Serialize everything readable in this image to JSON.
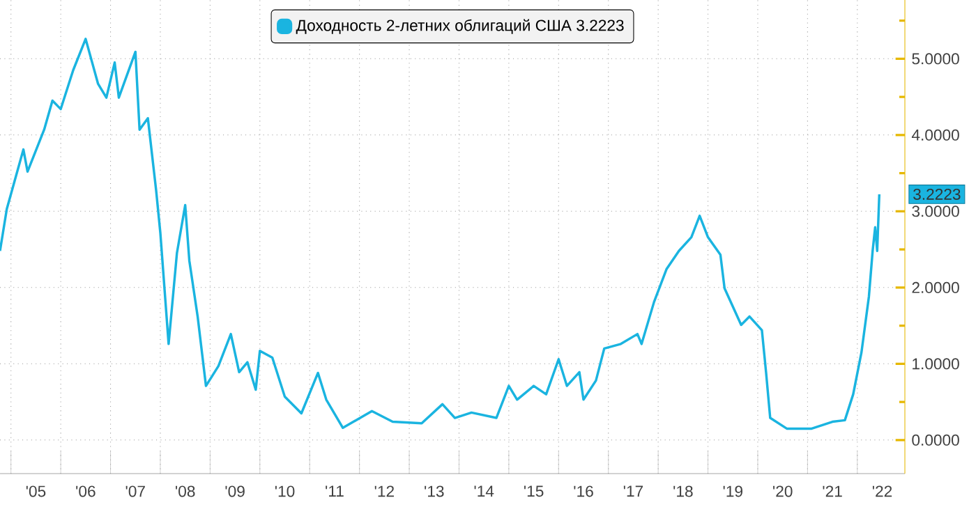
{
  "chart_data": {
    "type": "line",
    "x": [
      "2004-10-12",
      "2004-12",
      "2005-04",
      "2005-05",
      "2005-09",
      "2005-11",
      "2006-01",
      "2006-04",
      "2006-07",
      "2006-10",
      "2006-12",
      "2007-02",
      "2007-03",
      "2007-07",
      "2007-08",
      "2007-10",
      "2007-12",
      "2008-01",
      "2008-03",
      "2008-05",
      "2008-07",
      "2008-08",
      "2008-10",
      "2008-12",
      "2009-03",
      "2009-06",
      "2009-08",
      "2009-10",
      "2009-12",
      "2010-01",
      "2010-04",
      "2010-07",
      "2010-11",
      "2011-03",
      "2011-05",
      "2011-09",
      "2012-04",
      "2012-09",
      "2013-04",
      "2013-09",
      "2013-12",
      "2014-04",
      "2014-10",
      "2015-01",
      "2015-03",
      "2015-07",
      "2015-10",
      "2016-01",
      "2016-03",
      "2016-06",
      "2016-07",
      "2016-10",
      "2016-12",
      "2017-04",
      "2017-08",
      "2017-09",
      "2017-12",
      "2018-03",
      "2018-06",
      "2018-09",
      "2018-11",
      "2019-01",
      "2019-04",
      "2019-05",
      "2019-07",
      "2019-09",
      "2019-11",
      "2020-02",
      "2020-03",
      "2020-04",
      "2020-08",
      "2021-02",
      "2021-07",
      "2021-10",
      "2021-12",
      "2022-02",
      "2022-03-25",
      "2022-04-22",
      "2022-05-10",
      "2022-05-25",
      "2022-06-10"
    ],
    "series": [
      {
        "name": "Доходность 2-летних облигаций США 3.2223",
        "color": "#1ab4e0",
        "values": [
          2.48,
          3.03,
          3.81,
          3.52,
          4.07,
          4.45,
          4.34,
          4.85,
          5.26,
          4.67,
          4.49,
          4.95,
          4.49,
          5.09,
          4.07,
          4.22,
          3.27,
          2.72,
          1.26,
          2.45,
          3.08,
          2.35,
          1.62,
          0.71,
          0.97,
          1.39,
          0.89,
          1.02,
          0.66,
          1.17,
          1.08,
          0.57,
          0.35,
          0.88,
          0.53,
          0.16,
          0.38,
          0.24,
          0.22,
          0.47,
          0.29,
          0.36,
          0.29,
          0.71,
          0.53,
          0.71,
          0.6,
          1.06,
          0.71,
          0.89,
          0.53,
          0.78,
          1.2,
          1.26,
          1.39,
          1.26,
          1.81,
          2.24,
          2.48,
          2.66,
          2.94,
          2.66,
          2.43,
          1.99,
          1.75,
          1.51,
          1.62,
          1.44,
          0.89,
          0.29,
          0.15,
          0.15,
          0.24,
          0.26,
          0.6,
          1.15,
          1.88,
          2.48,
          2.79,
          2.48,
          3.2223
        ]
      }
    ],
    "xlim": [
      "2004-10-12",
      "2022-12-15"
    ],
    "xticks": [
      {
        "value": "2005-07",
        "label": "'05"
      },
      {
        "value": "2006-07",
        "label": "'06"
      },
      {
        "value": "2007-07",
        "label": "'07"
      },
      {
        "value": "2008-07",
        "label": "'08"
      },
      {
        "value": "2009-07",
        "label": "'09"
      },
      {
        "value": "2010-07",
        "label": "'10"
      },
      {
        "value": "2011-07",
        "label": "'11"
      },
      {
        "value": "2012-07",
        "label": "'12"
      },
      {
        "value": "2013-07",
        "label": "'13"
      },
      {
        "value": "2014-07",
        "label": "'14"
      },
      {
        "value": "2015-07",
        "label": "'15"
      },
      {
        "value": "2016-07",
        "label": "'16"
      },
      {
        "value": "2017-07",
        "label": "'17"
      },
      {
        "value": "2018-07",
        "label": "'18"
      },
      {
        "value": "2019-07",
        "label": "'19"
      },
      {
        "value": "2020-07",
        "label": "'20"
      },
      {
        "value": "2021-07",
        "label": "'21"
      },
      {
        "value": "2022-07",
        "label": "'22"
      },
      {
        "value": "2005",
        "label": null
      },
      {
        "value": "2006",
        "label": null
      },
      {
        "value": "2007",
        "label": null
      },
      {
        "value": "2008",
        "label": null
      },
      {
        "value": "2009",
        "label": null
      },
      {
        "value": "2010",
        "label": null
      },
      {
        "value": "2011",
        "label": null
      },
      {
        "value": "2012",
        "label": null
      },
      {
        "value": "2013",
        "label": null
      },
      {
        "value": "2014",
        "label": null
      },
      {
        "value": "2015",
        "label": null
      },
      {
        "value": "2016",
        "label": null
      },
      {
        "value": "2017",
        "label": null
      },
      {
        "value": "2018",
        "label": null
      },
      {
        "value": "2019",
        "label": null
      },
      {
        "value": "2020",
        "label": null
      },
      {
        "value": "2021",
        "label": null
      },
      {
        "value": "2022",
        "label": null
      }
    ],
    "ylim": [
      -0.44,
      5.77
    ],
    "yticks": [
      {
        "value": 0,
        "label": "0.0000"
      },
      {
        "value": 1,
        "label": "1.0000"
      },
      {
        "value": 2,
        "label": "2.0000"
      },
      {
        "value": 3,
        "label": "3.0000"
      },
      {
        "value": 4,
        "label": "4.0000"
      },
      {
        "value": 5,
        "label": "5.0000"
      },
      {
        "value": 0.5,
        "label": null
      },
      {
        "value": 1.5,
        "label": null
      },
      {
        "value": 2.5,
        "label": null
      },
      {
        "value": 3.5,
        "label": null
      },
      {
        "value": 4.5,
        "label": null
      },
      {
        "value": 5.5,
        "label": null
      }
    ],
    "annotations": [
      {
        "text": "3.2223",
        "y": 3.2223
      }
    ],
    "grid": true,
    "legend": "top",
    "marker": "none",
    "line_style": "solid"
  }
}
